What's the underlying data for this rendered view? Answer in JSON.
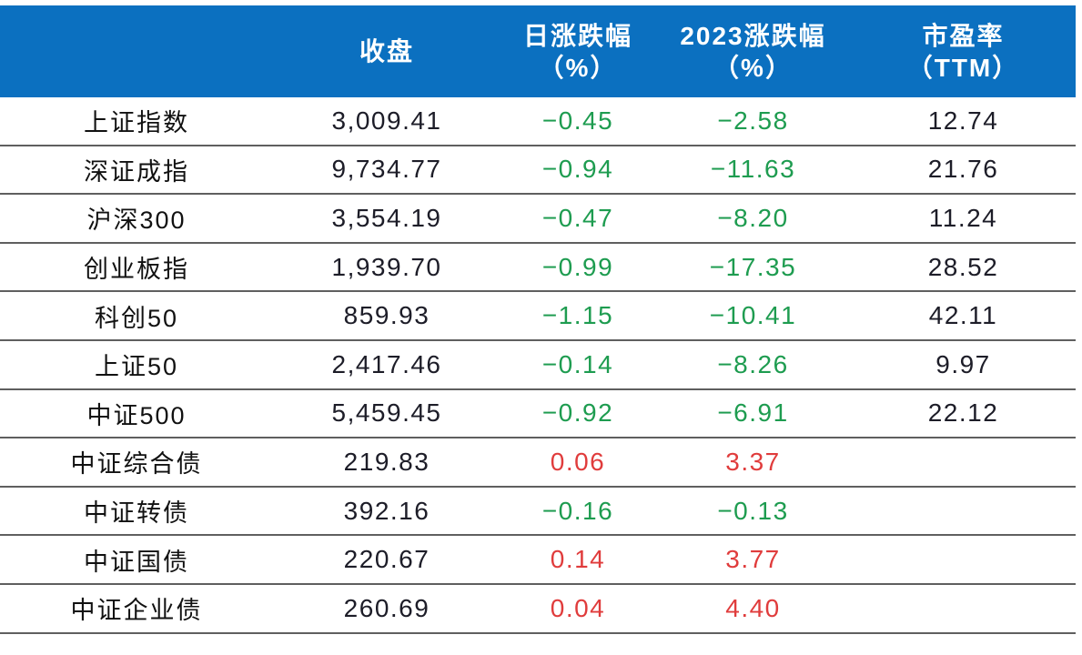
{
  "palette": {
    "header_bg": "#0B70C0",
    "header_text": "#FFFFFF",
    "negative_green": "#1E9C50",
    "positive_red": "#E03C3C",
    "grid_line": "#5F5F5F",
    "text_dark": "#1D1D28"
  },
  "table": {
    "header": {
      "index_col": "",
      "close": "收盘",
      "daily": {
        "line1": "日涨跌幅",
        "line2": "（%）"
      },
      "ytd": {
        "line1": "2023涨跌幅",
        "line2": "（%）"
      },
      "pe": {
        "line1": "市盈率",
        "line2": "（TTM）"
      }
    },
    "rows": [
      {
        "label": "上证指数",
        "close": "3,009.41",
        "daily": "−0.45",
        "ytd": "−2.58",
        "pe": "12.74"
      },
      {
        "label": "深证成指",
        "close": "9,734.77",
        "daily": "−0.94",
        "ytd": "−11.63",
        "pe": "21.76"
      },
      {
        "label": "沪深300",
        "close": "3,554.19",
        "daily": "−0.47",
        "ytd": "−8.20",
        "pe": "11.24"
      },
      {
        "label": "创业板指",
        "close": "1,939.70",
        "daily": "−0.99",
        "ytd": "−17.35",
        "pe": "28.52"
      },
      {
        "label": "科创50",
        "close": "859.93",
        "daily": "−1.15",
        "ytd": "−10.41",
        "pe": "42.11"
      },
      {
        "label": "上证50",
        "close": "2,417.46",
        "daily": "−0.14",
        "ytd": "−8.26",
        "pe": "9.97"
      },
      {
        "label": "中证500",
        "close": "5,459.45",
        "daily": "−0.92",
        "ytd": "−6.91",
        "pe": "22.12"
      },
      {
        "label": "中证综合债",
        "close": "219.83",
        "daily": "0.06",
        "ytd": "3.37",
        "pe": ""
      },
      {
        "label": "中证转债",
        "close": "392.16",
        "daily": "−0.16",
        "ytd": "−0.13",
        "pe": ""
      },
      {
        "label": "中证国债",
        "close": "220.67",
        "daily": "0.14",
        "ytd": "3.77",
        "pe": ""
      },
      {
        "label": "中证企业债",
        "close": "260.69",
        "daily": "0.04",
        "ytd": "4.40",
        "pe": ""
      }
    ]
  },
  "chart_data": {
    "type": "table",
    "title": "",
    "columns": [
      "",
      "收盘",
      "日涨跌幅（%）",
      "2023涨跌幅（%）",
      "市盈率（TTM）"
    ],
    "rows": [
      [
        "上证指数",
        3009.41,
        -0.45,
        -2.58,
        12.74
      ],
      [
        "深证成指",
        9734.77,
        -0.94,
        -11.63,
        21.76
      ],
      [
        "沪深300",
        3554.19,
        -0.47,
        -8.2,
        11.24
      ],
      [
        "创业板指",
        1939.7,
        -0.99,
        -17.35,
        28.52
      ],
      [
        "科创50",
        859.93,
        -1.15,
        -10.41,
        42.11
      ],
      [
        "上证50",
        2417.46,
        -0.14,
        -8.26,
        9.97
      ],
      [
        "中证500",
        5459.45,
        -0.92,
        -6.91,
        22.12
      ],
      [
        "中证综合债",
        219.83,
        0.06,
        3.37,
        null
      ],
      [
        "中证转债",
        392.16,
        -0.16,
        -0.13,
        null
      ],
      [
        "中证国债",
        220.67,
        0.14,
        3.77,
        null
      ],
      [
        "中证企业债",
        260.69,
        0.04,
        4.4,
        null
      ]
    ],
    "notes": "Negative values rendered green, positive values rendered red (Chinese market convention). PE column empty for bond indices."
  }
}
